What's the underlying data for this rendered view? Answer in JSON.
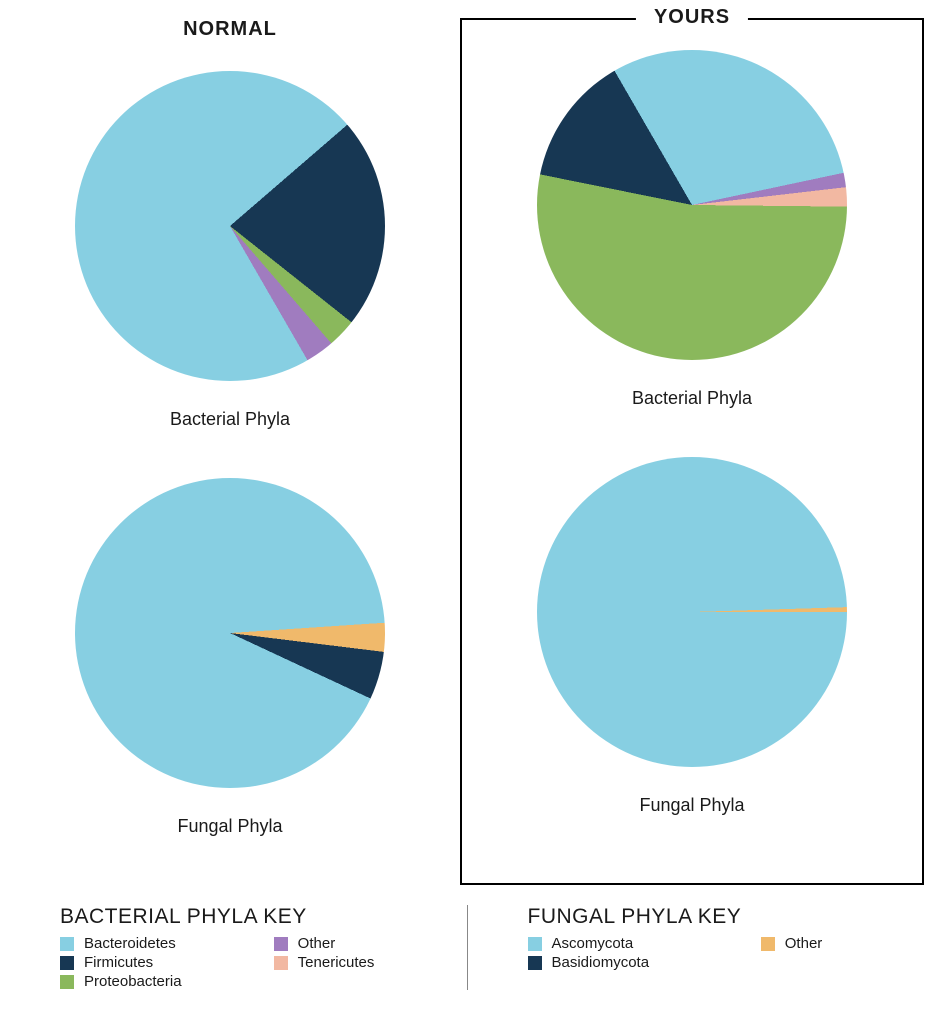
{
  "columns": {
    "normal": {
      "label": "NORMAL"
    },
    "yours": {
      "label": "YOURS"
    }
  },
  "palette": {
    "bacteroidetes": "#87cfe2",
    "firmicutes": "#173753",
    "proteobacteria": "#8ab85c",
    "tenericutes": "#f2b8a2",
    "bacterial_other": "#a07cbf",
    "ascomycota": "#87cfe2",
    "basidiomycota": "#173753",
    "fungal_other": "#f0b96b"
  },
  "charts": {
    "normal_bacterial": {
      "type": "pie",
      "caption": "Bacterial Phyla",
      "radius": 155,
      "background": "#ffffff",
      "slices": [
        {
          "label": "Bacteroidetes",
          "value": 72,
          "color": "#87cfe2"
        },
        {
          "label": "Firmicutes",
          "value": 22,
          "color": "#173753"
        },
        {
          "label": "Proteobacteria",
          "value": 3,
          "color": "#8ab85c"
        },
        {
          "label": "Other",
          "value": 3,
          "color": "#a07cbf"
        }
      ],
      "start_angle_deg": 150
    },
    "yours_bacterial": {
      "type": "pie",
      "caption": "Bacterial Phyla",
      "radius": 155,
      "background": "#ffffff",
      "slices": [
        {
          "label": "Bacteroidetes",
          "value": 30,
          "color": "#87cfe2"
        },
        {
          "label": "Other",
          "value": 1.5,
          "color": "#a07cbf"
        },
        {
          "label": "Tenericutes",
          "value": 2,
          "color": "#f2b8a2"
        },
        {
          "label": "Proteobacteria",
          "value": 53,
          "color": "#8ab85c"
        },
        {
          "label": "Firmicutes",
          "value": 13.5,
          "color": "#173753"
        }
      ],
      "start_angle_deg": -30
    },
    "normal_fungal": {
      "type": "pie",
      "caption": "Fungal Phyla",
      "radius": 155,
      "background": "#ffffff",
      "slices": [
        {
          "label": "Ascomycota",
          "value": 92,
          "color": "#87cfe2"
        },
        {
          "label": "Other",
          "value": 3,
          "color": "#f0b96b"
        },
        {
          "label": "Basidiomycota",
          "value": 5,
          "color": "#173753"
        }
      ],
      "start_angle_deg": 115
    },
    "yours_fungal": {
      "type": "pie",
      "caption": "Fungal Phyla",
      "radius": 155,
      "background": "#ffffff",
      "slices": [
        {
          "label": "Ascomycota",
          "value": 99.5,
          "color": "#87cfe2"
        },
        {
          "label": "Other",
          "value": 0.5,
          "color": "#f0b96b"
        }
      ],
      "start_angle_deg": 90
    }
  },
  "legends": {
    "bacterial": {
      "title": "BACTERIAL PHYLA KEY",
      "items": [
        {
          "label": "Bacteroidetes",
          "color": "#87cfe2"
        },
        {
          "label": "Other",
          "color": "#a07cbf"
        },
        {
          "label": "Firmicutes",
          "color": "#173753"
        },
        {
          "label": "Tenericutes",
          "color": "#f2b8a2"
        },
        {
          "label": "Proteobacteria",
          "color": "#8ab85c"
        }
      ]
    },
    "fungal": {
      "title": "FUNGAL PHYLA KEY",
      "items": [
        {
          "label": "Ascomycota",
          "color": "#87cfe2"
        },
        {
          "label": "Other",
          "color": "#f0b96b"
        },
        {
          "label": "Basidiomycota",
          "color": "#173753"
        }
      ]
    }
  }
}
